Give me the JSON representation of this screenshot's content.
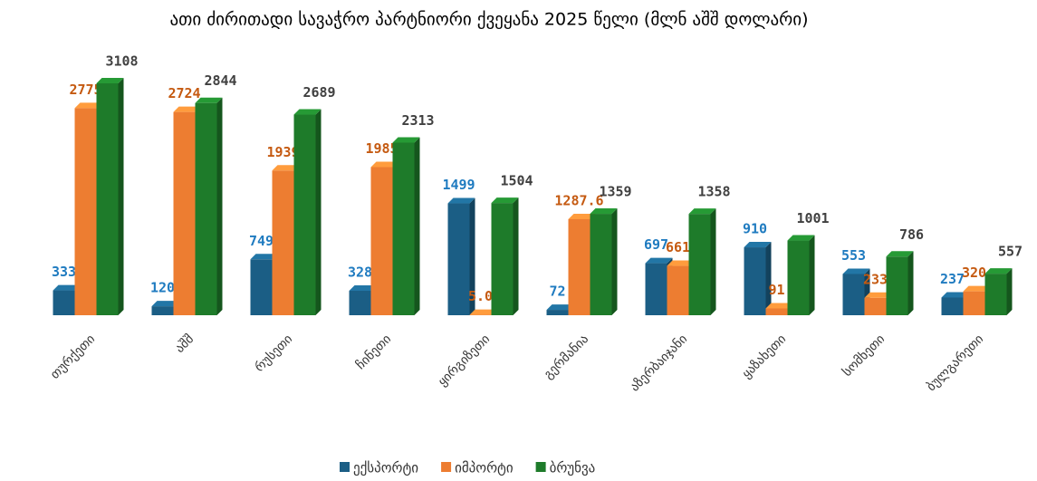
{
  "chart_data": {
    "type": "bar3d",
    "title": "ათი ძირითადი სავაჭრო პარტნიორი ქვეყანა 2025 წელი (მლნ აშშ დოლარი)",
    "categories": [
      "თურქეთი",
      "აშშ",
      "რუსეთი",
      "ჩინეთი",
      "ყირგიზეთი",
      "გერმანია",
      "აზერბაიჯანი",
      "ყაზახეთი",
      "სომხეთი",
      "ბულგარეთი"
    ],
    "series": [
      {
        "name": "ექსპორტი",
        "color": "#1b5e85",
        "label_color": "#1f7bc0",
        "values": [
          333,
          120,
          749,
          328,
          1499,
          72,
          697,
          910,
          553,
          237
        ]
      },
      {
        "name": "იმპორტი",
        "color": "#ed7d31",
        "label_color": "#c55a11",
        "values": [
          2775,
          2724,
          1939,
          1985,
          5,
          1287.6,
          661,
          91,
          233,
          320
        ],
        "value_labels": [
          "2775",
          "2724",
          "1939",
          "1985",
          "5.0",
          "1287.6",
          "661",
          "91",
          "233",
          "320"
        ]
      },
      {
        "name": "ბრუნვა",
        "color": "#1e7b2a",
        "label_color": "#404040",
        "values": [
          3108,
          2844,
          2689,
          2313,
          1504,
          1359,
          1358,
          1001,
          786,
          557
        ]
      }
    ],
    "legend": "bottom"
  }
}
